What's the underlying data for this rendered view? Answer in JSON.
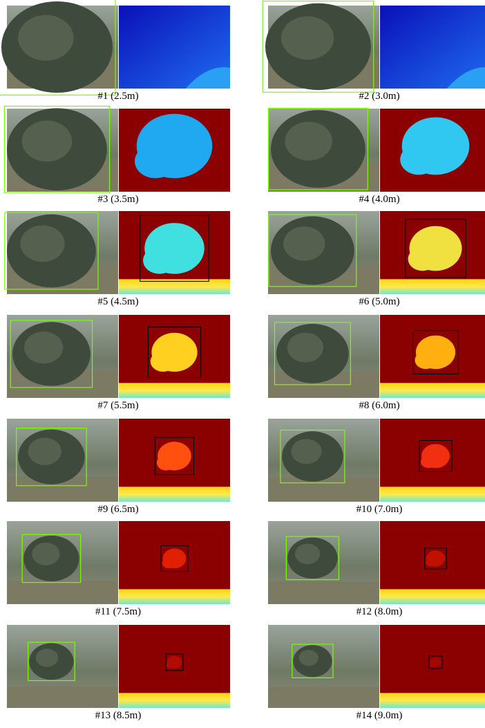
{
  "panels": [
    {
      "caption": "#1 (2.5m)"
    },
    {
      "caption": "#2 (3.0m)"
    },
    {
      "caption": "#3 (3.5m)"
    },
    {
      "caption": "#4 (4.0m)"
    },
    {
      "caption": "#5 (4.5m)"
    },
    {
      "caption": "#6 (5.0m)"
    },
    {
      "caption": "#7 (5.5m)"
    },
    {
      "caption": "#8 (6.0m)"
    },
    {
      "caption": "#9 (6.5m)"
    },
    {
      "caption": "#10 (7.0m)"
    },
    {
      "caption": "#11 (7.5m)"
    },
    {
      "caption": "#12 (8.0m)"
    },
    {
      "caption": "#13 (8.5m)"
    },
    {
      "caption": "#14 (9.0m)"
    }
  ]
}
